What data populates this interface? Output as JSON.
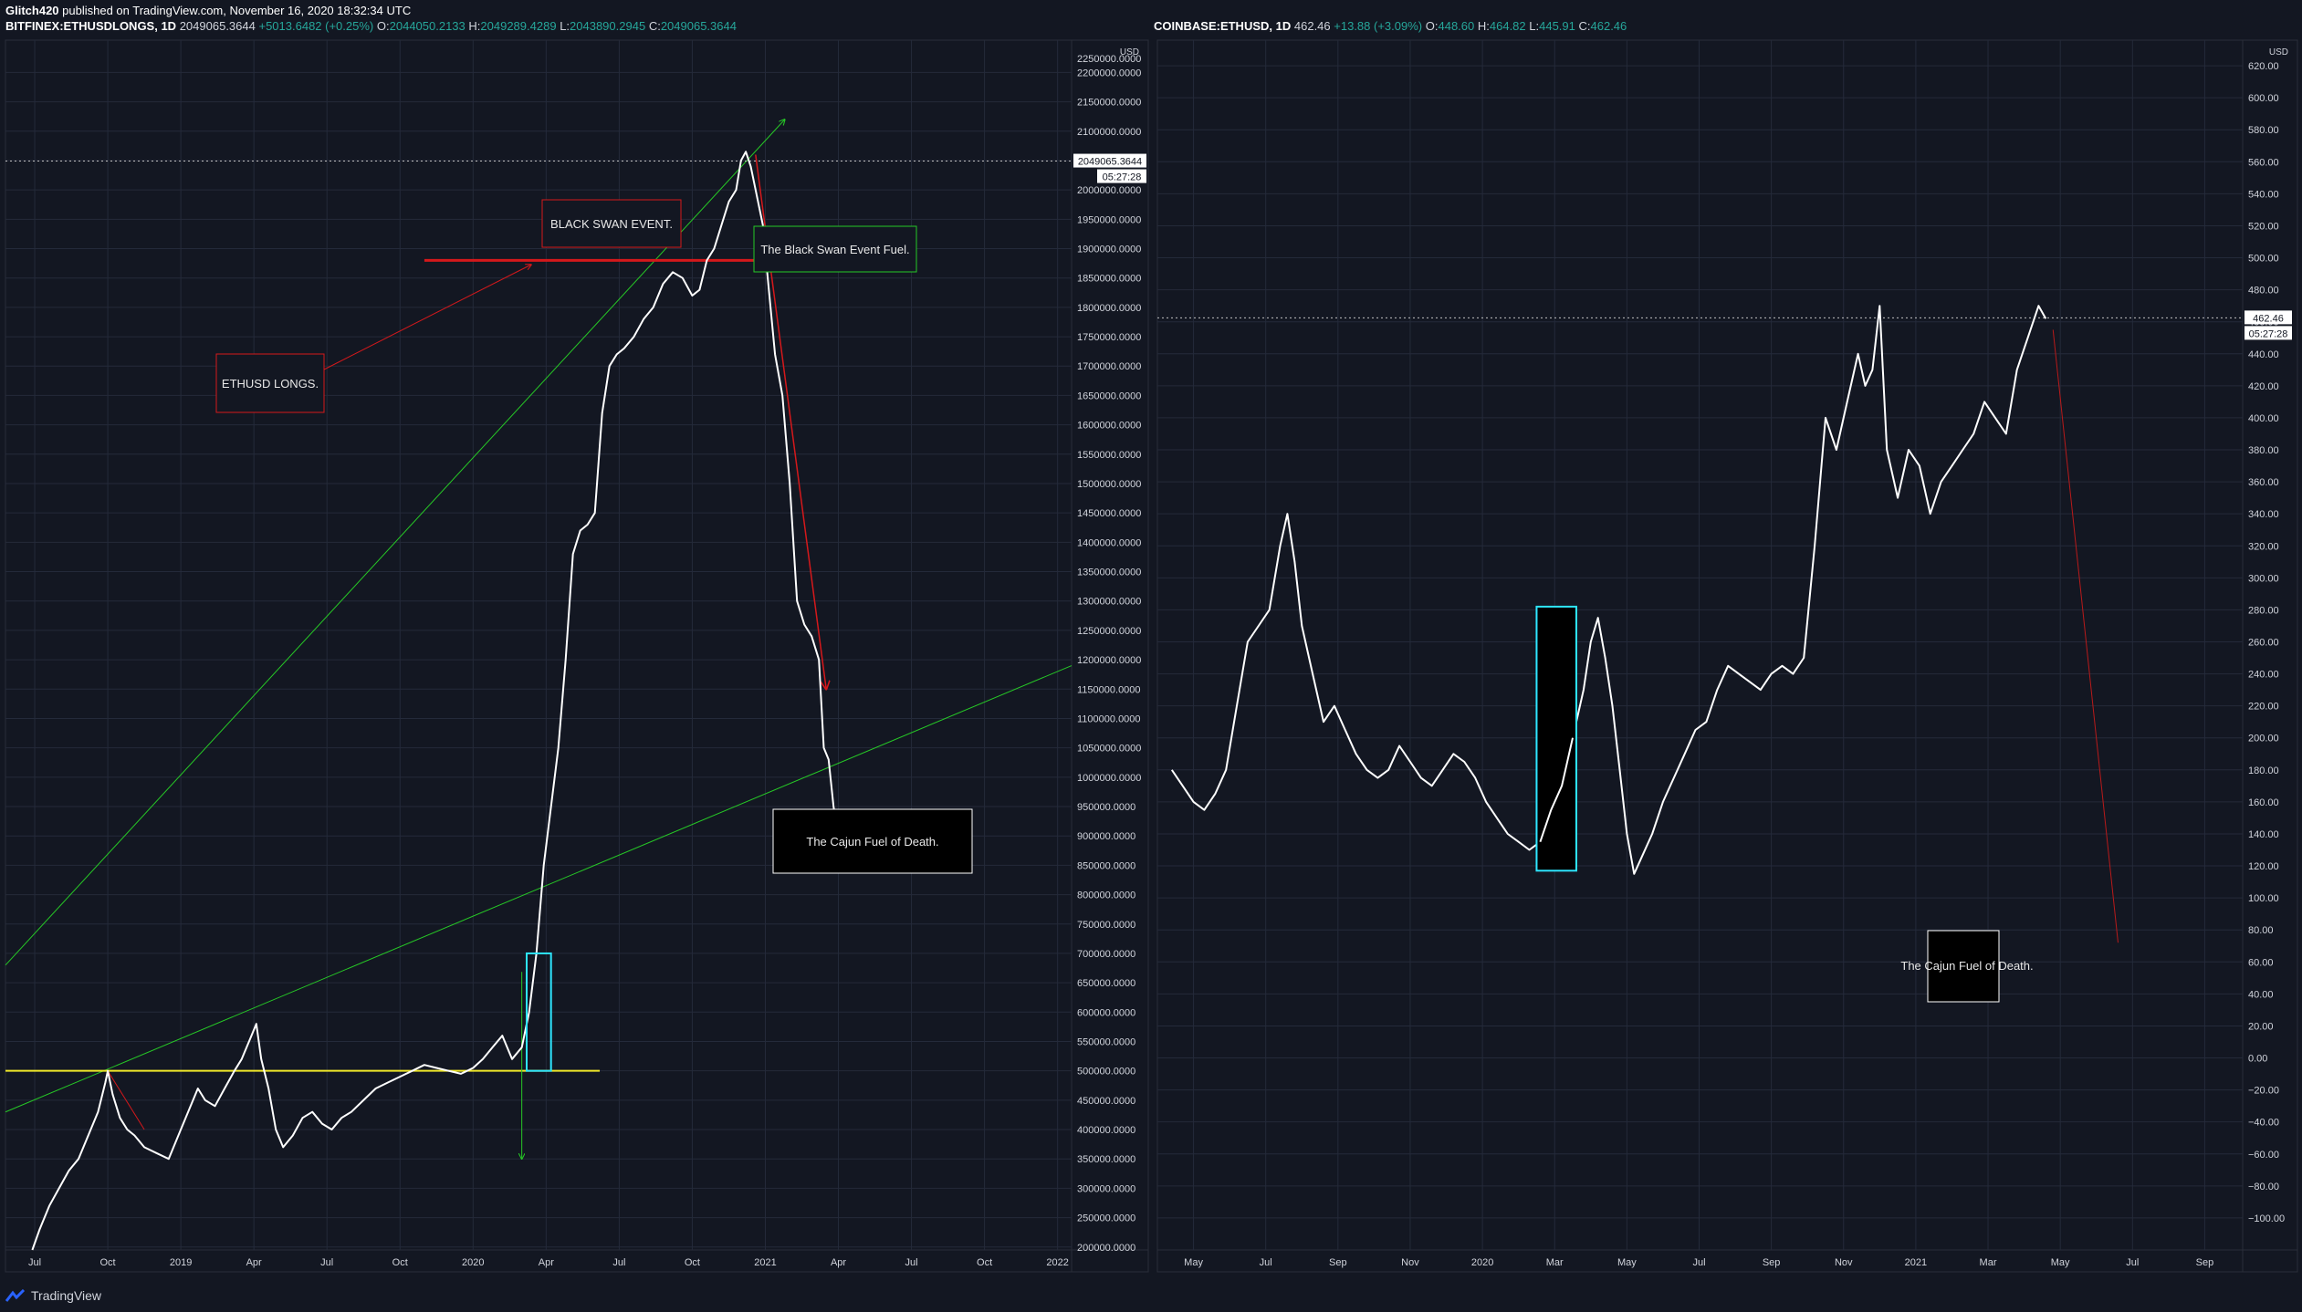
{
  "header": {
    "author": "Glitch420",
    "published_text": "published on TradingView.com, November 16, 2020 18:32:34 UTC"
  },
  "left_chart": {
    "symbol": "BITFINEX:ETHUSDLONGS, 1D",
    "last": "2049065.3644",
    "change": "+5013.6482 (+0.25%)",
    "o_label": "O:",
    "o": "2044050.2133",
    "h_label": "H:",
    "h": "2049289.4289",
    "l_label": "L:",
    "l": "2043890.2945",
    "c_label": "C:",
    "c": "2049065.3644",
    "currency": "USD",
    "price_tag": "2049065.3644",
    "time_tag": "05:27:28"
  },
  "right_chart": {
    "symbol": "COINBASE:ETHUSD, 1D",
    "last": "462.46",
    "change": "+13.88 (+3.09%)",
    "o_label": "O:",
    "o": "448.60",
    "h_label": "H:",
    "h": "464.82",
    "l_label": "L:",
    "l": "445.91",
    "c_label": "C:",
    "c": "462.46",
    "currency": "USD",
    "price_tag": "462.46",
    "time_tag": "05:27:28"
  },
  "footer": {
    "brand": "TradingView"
  },
  "colors": {
    "background": "#131722",
    "grid": "#242a3a",
    "price_line": "#ffffff",
    "annotation_red": "#d5181b",
    "annotation_green": "#26c826",
    "support_yellow": "#f0e82a",
    "highlight_cyan": "#2ee6ff",
    "axis_text": "#d1d4dc"
  },
  "chart_data": [
    {
      "type": "line",
      "name": "BITFINEX:ETHUSDLONGS 1D",
      "x_ticks": [
        "Jul",
        "Oct",
        "2019",
        "Apr",
        "Jul",
        "Oct",
        "2020",
        "Apr",
        "Jul",
        "Oct",
        "2021",
        "Apr",
        "Jul",
        "Oct",
        "2022"
      ],
      "y_ticks": [
        "2200000.0000",
        "2150000.0000",
        "2100000.0000",
        "2050000.0000",
        "2000000.0000",
        "1950000.0000",
        "1900000.0000",
        "1850000.0000",
        "1800000.0000",
        "1750000.0000",
        "1700000.0000",
        "1650000.0000",
        "1600000.0000",
        "1550000.0000",
        "1500000.0000",
        "1450000.0000",
        "1400000.0000",
        "1350000.0000",
        "1300000.0000",
        "1250000.0000",
        "1200000.0000",
        "1150000.0000",
        "1100000.0000",
        "1050000.0000",
        "1000000.0000",
        "950000.0000",
        "900000.0000",
        "850000.0000",
        "800000.0000",
        "750000.0000",
        "700000.0000",
        "650000.0000",
        "600000.0000",
        "550000.0000",
        "500000.0000",
        "450000.0000",
        "400000.0000",
        "350000.0000",
        "300000.0000",
        "250000.0000",
        "200000.0000"
      ],
      "y_top_label": "2250000.0000",
      "ylim": [
        195000,
        2255000
      ],
      "x_months": [
        0,
        3,
        6,
        9,
        12,
        15,
        18,
        21,
        24,
        27,
        30,
        33,
        36,
        39,
        42
      ],
      "price_series": [
        [
          -0.1,
          195000
        ],
        [
          0.2,
          230000
        ],
        [
          0.6,
          270000
        ],
        [
          1.0,
          300000
        ],
        [
          1.4,
          330000
        ],
        [
          1.8,
          350000
        ],
        [
          2.2,
          390000
        ],
        [
          2.6,
          430000
        ],
        [
          2.9,
          480000
        ],
        [
          3.0,
          500000
        ],
        [
          3.2,
          460000
        ],
        [
          3.5,
          420000
        ],
        [
          3.8,
          400000
        ],
        [
          4.1,
          390000
        ],
        [
          4.5,
          370000
        ],
        [
          5.0,
          360000
        ],
        [
          5.5,
          350000
        ],
        [
          6.0,
          400000
        ],
        [
          6.3,
          430000
        ],
        [
          6.7,
          470000
        ],
        [
          7.0,
          450000
        ],
        [
          7.4,
          440000
        ],
        [
          7.8,
          470000
        ],
        [
          8.2,
          500000
        ],
        [
          8.5,
          520000
        ],
        [
          8.9,
          560000
        ],
        [
          9.1,
          580000
        ],
        [
          9.3,
          520000
        ],
        [
          9.6,
          470000
        ],
        [
          9.9,
          400000
        ],
        [
          10.2,
          370000
        ],
        [
          10.6,
          390000
        ],
        [
          11.0,
          420000
        ],
        [
          11.4,
          430000
        ],
        [
          11.8,
          410000
        ],
        [
          12.2,
          400000
        ],
        [
          12.6,
          420000
        ],
        [
          13.0,
          430000
        ],
        [
          13.5,
          450000
        ],
        [
          14.0,
          470000
        ],
        [
          14.5,
          480000
        ],
        [
          15.0,
          490000
        ],
        [
          15.5,
          500000
        ],
        [
          16.0,
          510000
        ],
        [
          16.5,
          505000
        ],
        [
          17.0,
          500000
        ],
        [
          17.5,
          495000
        ],
        [
          18.0,
          505000
        ],
        [
          18.4,
          520000
        ],
        [
          18.8,
          540000
        ],
        [
          19.2,
          560000
        ],
        [
          19.6,
          520000
        ],
        [
          20.0,
          540000
        ],
        [
          20.3,
          600000
        ],
        [
          20.6,
          700000
        ],
        [
          20.9,
          850000
        ],
        [
          21.2,
          950000
        ],
        [
          21.5,
          1050000
        ],
        [
          21.8,
          1200000
        ],
        [
          22.1,
          1380000
        ],
        [
          22.4,
          1420000
        ],
        [
          22.7,
          1430000
        ],
        [
          23.0,
          1450000
        ],
        [
          23.3,
          1620000
        ],
        [
          23.6,
          1700000
        ],
        [
          23.9,
          1720000
        ],
        [
          24.2,
          1730000
        ],
        [
          24.6,
          1750000
        ],
        [
          25.0,
          1780000
        ],
        [
          25.4,
          1800000
        ],
        [
          25.8,
          1840000
        ],
        [
          26.2,
          1860000
        ],
        [
          26.6,
          1850000
        ],
        [
          27.0,
          1820000
        ],
        [
          27.3,
          1830000
        ],
        [
          27.6,
          1880000
        ],
        [
          27.9,
          1900000
        ],
        [
          28.2,
          1940000
        ],
        [
          28.5,
          1980000
        ],
        [
          28.8,
          2000000
        ],
        [
          29.0,
          2050000
        ],
        [
          29.2,
          2065000
        ],
        [
          29.4,
          2040000
        ],
        [
          29.6,
          2000000
        ],
        [
          29.9,
          1940000
        ],
        [
          30.1,
          1850000
        ],
        [
          30.4,
          1720000
        ],
        [
          30.7,
          1650000
        ],
        [
          31.0,
          1500000
        ],
        [
          31.3,
          1300000
        ],
        [
          31.6,
          1260000
        ],
        [
          31.9,
          1240000
        ],
        [
          32.2,
          1200000
        ],
        [
          32.4,
          1050000
        ],
        [
          32.6,
          1030000
        ],
        [
          32.8,
          950000
        ],
        [
          33.0,
          900000
        ]
      ],
      "annotations": [
        {
          "kind": "text_box",
          "text": "BLACK SWAN EVENT.",
          "style": "red"
        },
        {
          "kind": "text_box",
          "text": "The Black Swan Event Fuel.",
          "style": "green"
        },
        {
          "kind": "text_box",
          "text": "ETHUSD LONGS.",
          "style": "red"
        },
        {
          "kind": "text_box",
          "text": "The Cajun Fuel of Death.",
          "style": "black"
        },
        {
          "kind": "horizontal_arrow",
          "y": 1880000,
          "style": "red"
        },
        {
          "kind": "support_line",
          "y": 500000,
          "style": "yellow"
        },
        {
          "kind": "highlight_box",
          "x": [
            20.2,
            21.2
          ],
          "y": [
            500000,
            700000
          ],
          "style": "cyan"
        }
      ]
    },
    {
      "type": "line",
      "name": "COINBASE:ETHUSD 1D",
      "x_ticks": [
        "May",
        "Jul",
        "Sep",
        "Nov",
        "2020",
        "Mar",
        "May",
        "Jul",
        "Sep",
        "Nov",
        "2021",
        "Mar",
        "May",
        "Jul",
        "Sep"
      ],
      "y_ticks": [
        "620.00",
        "600.00",
        "580.00",
        "560.00",
        "540.00",
        "520.00",
        "500.00",
        "480.00",
        "460.00",
        "440.00",
        "420.00",
        "400.00",
        "380.00",
        "360.00",
        "340.00",
        "320.00",
        "300.00",
        "280.00",
        "260.00",
        "240.00",
        "220.00",
        "200.00",
        "180.00",
        "160.00",
        "140.00",
        "120.00",
        "100.00",
        "80.00",
        "60.00",
        "40.00",
        "20.00",
        "0.00",
        "−20.00",
        "−40.00",
        "−60.00",
        "−80.00",
        "−100.00"
      ],
      "ylim": [
        -120,
        636
      ],
      "x_months": [
        0,
        2,
        4,
        6,
        8,
        10,
        12,
        14,
        16,
        18,
        20,
        22,
        24,
        26,
        28
      ],
      "price_series": [
        [
          -0.6,
          180
        ],
        [
          -0.3,
          170
        ],
        [
          0.0,
          160
        ],
        [
          0.3,
          155
        ],
        [
          0.6,
          165
        ],
        [
          0.9,
          180
        ],
        [
          1.2,
          220
        ],
        [
          1.5,
          260
        ],
        [
          1.8,
          270
        ],
        [
          2.1,
          280
        ],
        [
          2.4,
          320
        ],
        [
          2.6,
          340
        ],
        [
          2.8,
          310
        ],
        [
          3.0,
          270
        ],
        [
          3.3,
          240
        ],
        [
          3.6,
          210
        ],
        [
          3.9,
          220
        ],
        [
          4.2,
          205
        ],
        [
          4.5,
          190
        ],
        [
          4.8,
          180
        ],
        [
          5.1,
          175
        ],
        [
          5.4,
          180
        ],
        [
          5.7,
          195
        ],
        [
          6.0,
          185
        ],
        [
          6.3,
          175
        ],
        [
          6.6,
          170
        ],
        [
          6.9,
          180
        ],
        [
          7.2,
          190
        ],
        [
          7.5,
          185
        ],
        [
          7.8,
          175
        ],
        [
          8.1,
          160
        ],
        [
          8.4,
          150
        ],
        [
          8.7,
          140
        ],
        [
          9.0,
          135
        ],
        [
          9.3,
          130
        ],
        [
          9.6,
          135
        ],
        [
          9.9,
          155
        ],
        [
          10.2,
          170
        ],
        [
          10.5,
          200
        ],
        [
          10.8,
          230
        ],
        [
          11.0,
          260
        ],
        [
          11.2,
          275
        ],
        [
          11.4,
          250
        ],
        [
          11.6,
          220
        ],
        [
          11.8,
          180
        ],
        [
          12.0,
          140
        ],
        [
          12.2,
          115
        ],
        [
          12.4,
          125
        ],
        [
          12.7,
          140
        ],
        [
          13.0,
          160
        ],
        [
          13.3,
          175
        ],
        [
          13.6,
          190
        ],
        [
          13.9,
          205
        ],
        [
          14.2,
          210
        ],
        [
          14.5,
          230
        ],
        [
          14.8,
          245
        ],
        [
          15.1,
          240
        ],
        [
          15.4,
          235
        ],
        [
          15.7,
          230
        ],
        [
          16.0,
          240
        ],
        [
          16.3,
          245
        ],
        [
          16.6,
          240
        ],
        [
          16.9,
          250
        ],
        [
          17.2,
          320
        ],
        [
          17.5,
          400
        ],
        [
          17.8,
          380
        ],
        [
          18.1,
          410
        ],
        [
          18.4,
          440
        ],
        [
          18.6,
          420
        ],
        [
          18.8,
          430
        ],
        [
          19.0,
          470
        ],
        [
          19.2,
          380
        ],
        [
          19.5,
          350
        ],
        [
          19.8,
          380
        ],
        [
          20.1,
          370
        ],
        [
          20.4,
          340
        ],
        [
          20.7,
          360
        ],
        [
          21.0,
          370
        ],
        [
          21.3,
          380
        ],
        [
          21.6,
          390
        ],
        [
          21.9,
          410
        ],
        [
          22.2,
          400
        ],
        [
          22.5,
          390
        ],
        [
          22.8,
          430
        ],
        [
          23.1,
          450
        ],
        [
          23.4,
          470
        ],
        [
          23.6,
          462
        ]
      ],
      "annotations": [
        {
          "kind": "text_box",
          "text": "The Cajun Fuel of Death.",
          "style": "black"
        },
        {
          "kind": "highlight_box",
          "x": [
            9.5,
            10.6
          ],
          "y": [
            117,
            282
          ],
          "style": "cyan"
        }
      ]
    }
  ]
}
